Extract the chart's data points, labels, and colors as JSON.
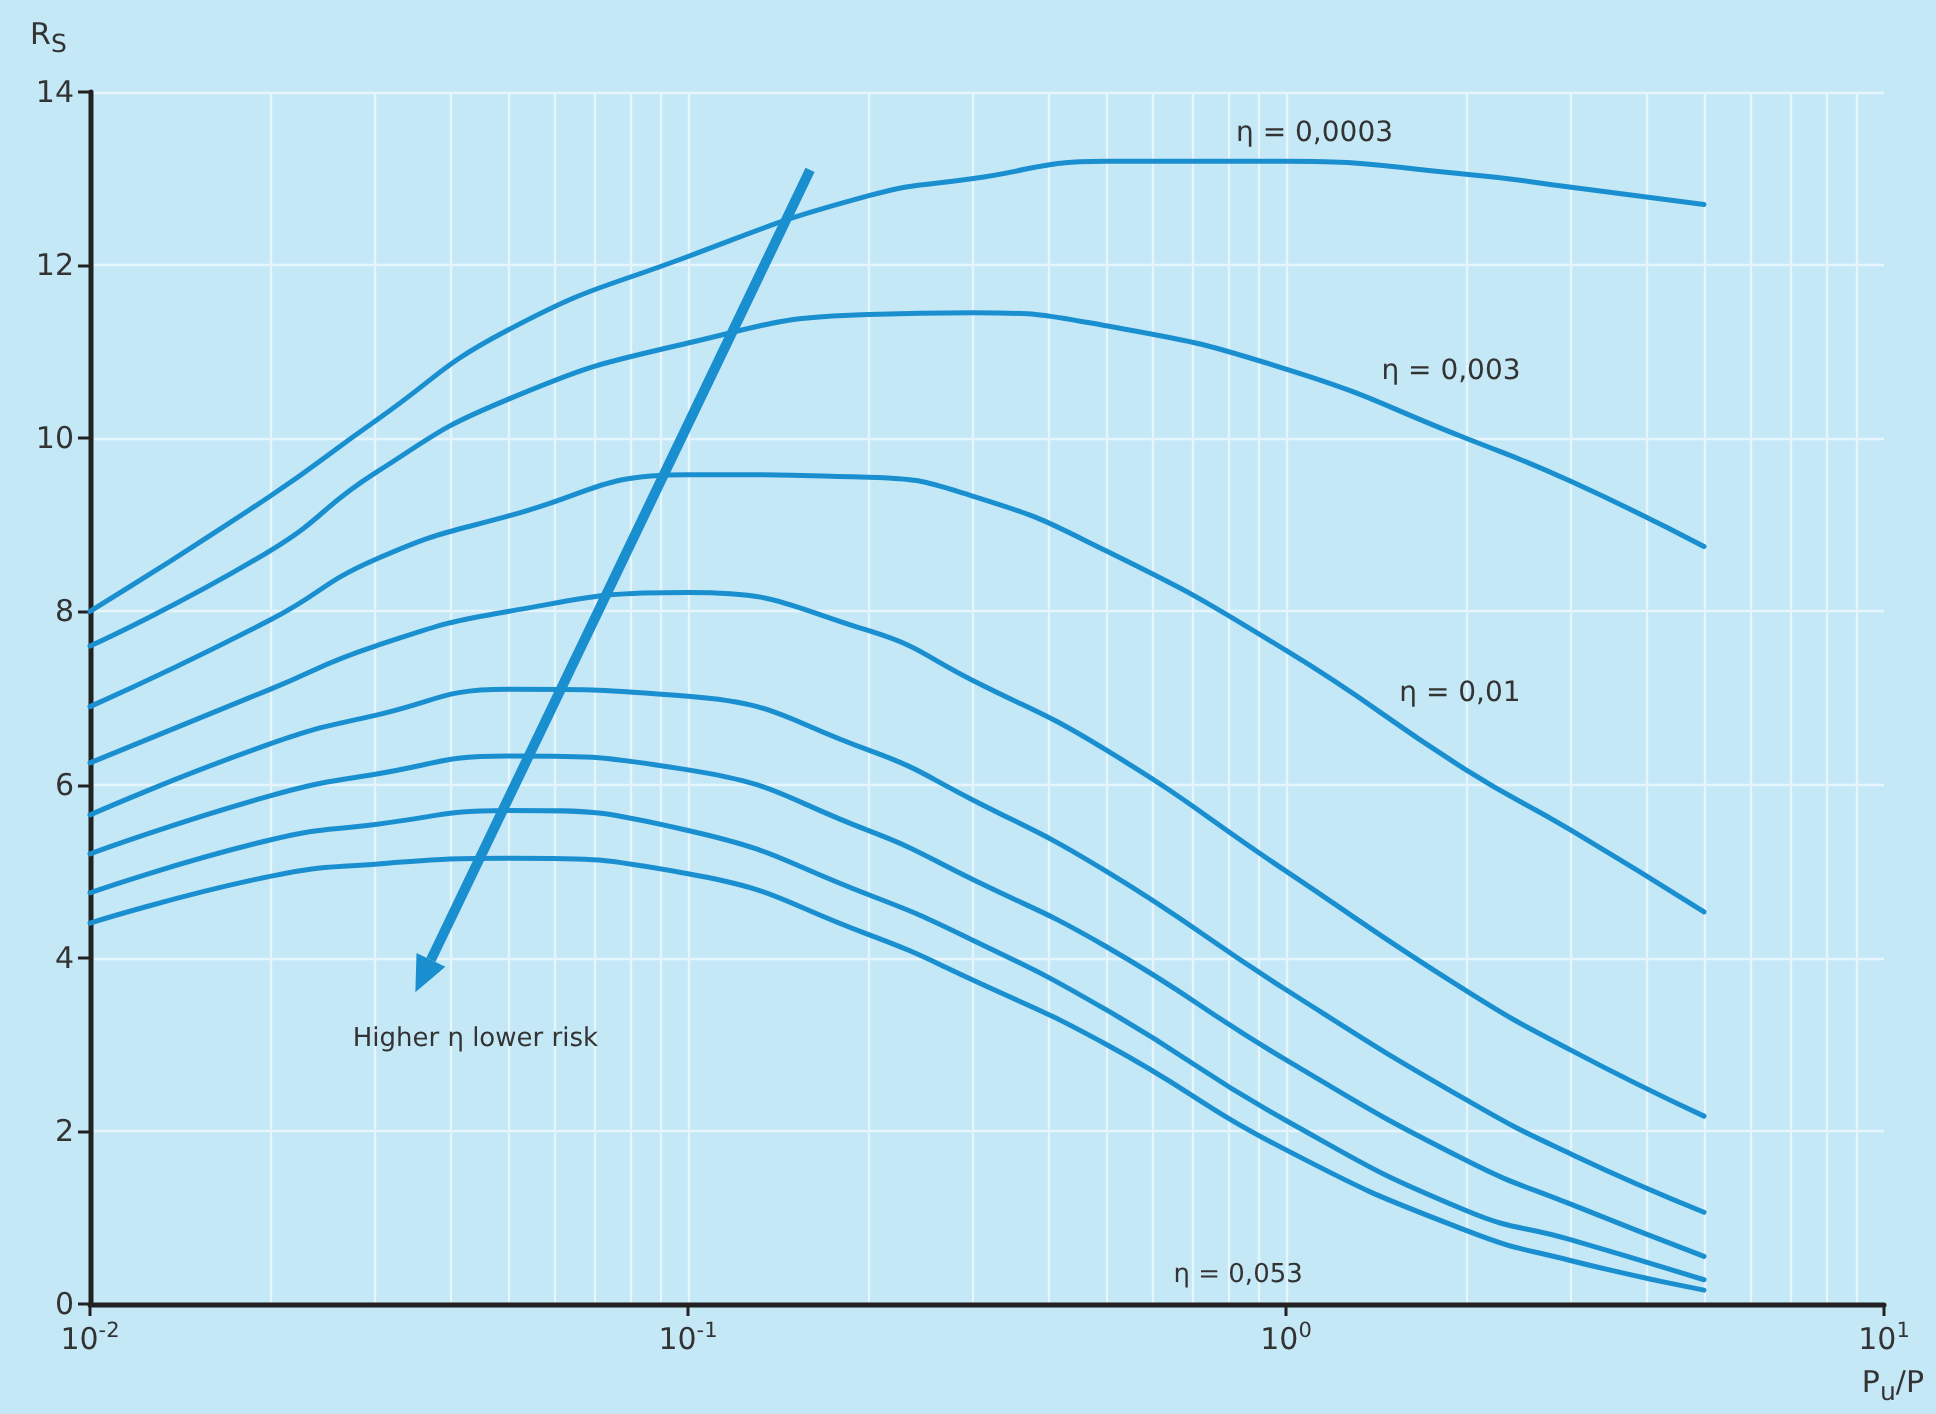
{
  "chart_data": {
    "type": "line",
    "xlabel": "P$_{u}$/P",
    "ylabel": "R$_{S}$",
    "log": "x",
    "grid": true,
    "marker": "none",
    "line_style": "solid",
    "x": [
      0.01,
      0.02,
      0.03,
      0.05,
      0.1,
      0.2,
      0.3,
      0.5,
      1,
      2,
      3,
      5
    ],
    "xlim": [
      0.01,
      10
    ],
    "xticks": [
      {
        "value": 0.01,
        "label": "10$^{-2}$"
      },
      {
        "value": 0.1,
        "label": "10$^{-1}$"
      },
      {
        "value": 1,
        "label": "10$^{0}$"
      },
      {
        "value": 10,
        "label": "10$^{1}$"
      }
    ],
    "ylim": [
      0,
      14
    ],
    "yticks": [
      0,
      2,
      4,
      6,
      8,
      10,
      12,
      14
    ],
    "series": [
      {
        "color": "#1a8fd0",
        "values": [
          8.0,
          9.33,
          10.2,
          11.25,
          12.1,
          12.8,
          13.0,
          13.2,
          13.2,
          13.05,
          12.9,
          12.7
        ]
      },
      {
        "color": "#1a8fd0",
        "values": [
          7.6,
          8.7,
          9.6,
          10.45,
          11.1,
          11.43,
          11.45,
          11.3,
          10.8,
          10.0,
          9.5,
          8.75
        ]
      },
      {
        "color": "#1a8fd0",
        "values": [
          6.9,
          7.9,
          8.6,
          9.1,
          9.58,
          9.55,
          9.33,
          8.7,
          7.55,
          6.17,
          5.47,
          4.53
        ]
      },
      {
        "color": "#1a8fd0",
        "values": [
          6.25,
          7.1,
          7.6,
          8.0,
          8.22,
          7.78,
          7.2,
          6.4,
          5.0,
          3.62,
          2.93,
          2.17
        ]
      },
      {
        "color": "#1a8fd0",
        "values": [
          5.65,
          6.47,
          6.8,
          7.1,
          7.02,
          6.4,
          5.82,
          5.0,
          3.63,
          2.36,
          1.73,
          1.06
        ]
      },
      {
        "color": "#1a8fd0",
        "values": [
          5.2,
          5.87,
          6.12,
          6.33,
          6.17,
          5.47,
          4.9,
          4.13,
          2.82,
          1.66,
          1.15,
          0.55
        ]
      },
      {
        "color": "#1a8fd0",
        "values": [
          4.75,
          5.36,
          5.54,
          5.7,
          5.47,
          4.73,
          4.2,
          3.4,
          2.12,
          1.08,
          0.74,
          0.28
        ]
      },
      {
        "color": "#1a8fd0",
        "values": [
          4.4,
          4.94,
          5.08,
          5.15,
          4.97,
          4.27,
          3.74,
          3.0,
          1.78,
          0.85,
          0.5,
          0.16
        ]
      }
    ],
    "annotations": [
      {
        "text": "η = 0,0003",
        "x": 0.8,
        "y": 13.2
      },
      {
        "text": "η = 0,003",
        "x": 1.4,
        "y": 10.45
      },
      {
        "text": "η = 0,01",
        "x": 1.5,
        "y": 6.74
      },
      "η = 0,053",
      "Higher η lower risk"
    ]
  }
}
